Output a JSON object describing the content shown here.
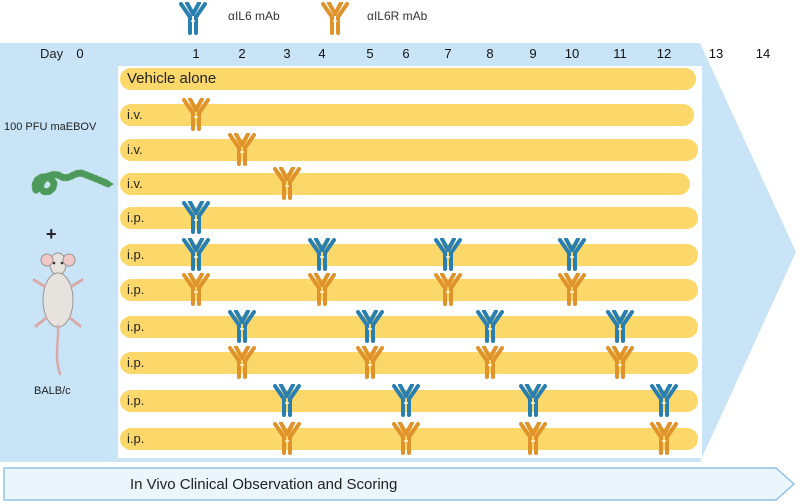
{
  "legend": [
    {
      "label": "αIL6 mAb",
      "antibody": "il6",
      "color": "#2a7fb1"
    },
    {
      "label": "αIL6R mAb",
      "antibody": "il6r",
      "color": "#e0932a"
    }
  ],
  "timeline": {
    "day_label": "Day",
    "days": [
      "0",
      "1",
      "2",
      "3",
      "4",
      "5",
      "6",
      "7",
      "8",
      "9",
      "10",
      "11",
      "12",
      "13",
      "14"
    ],
    "arrow_color": "#c9e4f7"
  },
  "left_panel": {
    "virus_label": "100 PFU maEBOV",
    "virus_icon": "virus-icon",
    "plus": "+",
    "mouse_icon": "mouse-icon",
    "mouse_label": "BALB/c"
  },
  "rows": [
    {
      "label": "Vehicle alone",
      "doses": []
    },
    {
      "label": "i.v.",
      "doses": [
        {
          "day": 1,
          "ab": "il6r"
        }
      ]
    },
    {
      "label": "i.v.",
      "doses": [
        {
          "day": 2,
          "ab": "il6r"
        }
      ]
    },
    {
      "label": "i.v.",
      "doses": [
        {
          "day": 3,
          "ab": "il6r"
        }
      ]
    },
    {
      "label": "i.p.",
      "doses": [
        {
          "day": 1,
          "ab": "il6"
        }
      ]
    },
    {
      "label": "i.p.",
      "doses": [
        {
          "day": 1,
          "ab": "il6"
        },
        {
          "day": 4,
          "ab": "il6"
        },
        {
          "day": 7,
          "ab": "il6"
        },
        {
          "day": 10,
          "ab": "il6"
        }
      ]
    },
    {
      "label": "i.p.",
      "doses": [
        {
          "day": 1,
          "ab": "il6r"
        },
        {
          "day": 4,
          "ab": "il6r"
        },
        {
          "day": 7,
          "ab": "il6r"
        },
        {
          "day": 10,
          "ab": "il6r"
        }
      ]
    },
    {
      "label": "i.p.",
      "doses": [
        {
          "day": 2,
          "ab": "il6"
        },
        {
          "day": 5,
          "ab": "il6"
        },
        {
          "day": 8,
          "ab": "il6"
        },
        {
          "day": 11,
          "ab": "il6"
        }
      ]
    },
    {
      "label": "i.p.",
      "doses": [
        {
          "day": 2,
          "ab": "il6r"
        },
        {
          "day": 5,
          "ab": "il6r"
        },
        {
          "day": 8,
          "ab": "il6r"
        },
        {
          "day": 11,
          "ab": "il6r"
        }
      ]
    },
    {
      "label": "i.p.",
      "doses": [
        {
          "day": 3,
          "ab": "il6"
        },
        {
          "day": 6,
          "ab": "il6"
        },
        {
          "day": 9,
          "ab": "il6"
        },
        {
          "day": 12,
          "ab": "il6"
        }
      ]
    },
    {
      "label": "i.p.",
      "doses": [
        {
          "day": 3,
          "ab": "il6r"
        },
        {
          "day": 6,
          "ab": "il6r"
        },
        {
          "day": 9,
          "ab": "il6r"
        },
        {
          "day": 12,
          "ab": "il6r"
        }
      ]
    }
  ],
  "footer": {
    "label": "In Vivo Clinical Observation and Scoring"
  },
  "colors": {
    "row_bar": "#fcd769",
    "il6": "#2a7fb1",
    "il6r": "#e0932a",
    "footer_fill": "#eaf5fc",
    "footer_stroke": "#8fc3e6"
  }
}
